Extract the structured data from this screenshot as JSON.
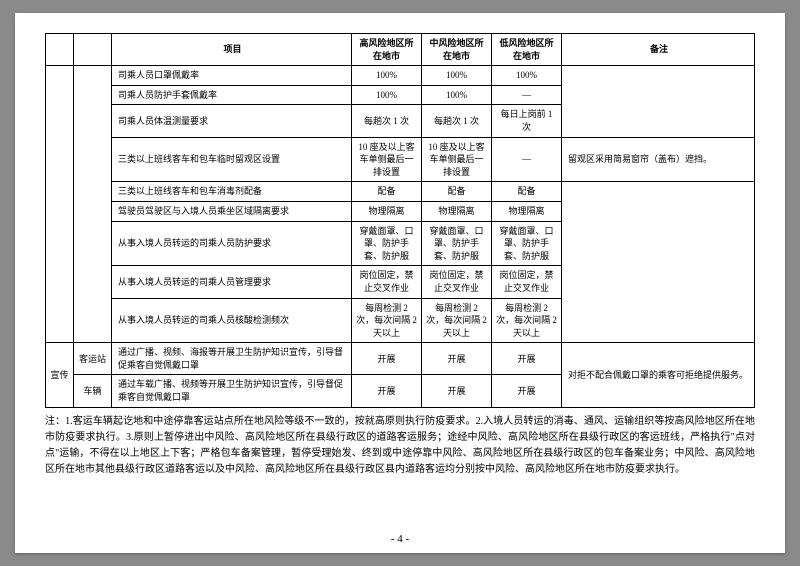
{
  "header": {
    "item": "项目",
    "high": "高风险地区所在地市",
    "mid": "中风险地区所在地市",
    "low": "低风险地区所在地市",
    "note": "备注"
  },
  "rows": [
    {
      "item": "司乘人员口罩佩戴率",
      "high": "100%",
      "mid": "100%",
      "low": "100%",
      "note": ""
    },
    {
      "item": "司乘人员防护手套佩戴率",
      "high": "100%",
      "mid": "100%",
      "low": "—",
      "note": ""
    },
    {
      "item": "司乘人员体温测量要求",
      "high": "每趟次 1 次",
      "mid": "每趟次 1 次",
      "low": "每日上岗前 1 次",
      "note": ""
    },
    {
      "item": "三类以上班线客车和包车临时留观区设置",
      "high": "10 座及以上客车单侧最后一排设置",
      "mid": "10 座及以上客车单侧最后一排设置",
      "low": "—",
      "note": "留观区采用简易窗帘（盖布）遮挡。"
    },
    {
      "item": "三类以上班线客车和包车消毒剂配备",
      "high": "配备",
      "mid": "配备",
      "low": "配备",
      "note": ""
    },
    {
      "item": "驾驶员驾驶区与入境人员乘坐区域隔离要求",
      "high": "物理隔离",
      "mid": "物理隔离",
      "low": "物理隔离",
      "note": ""
    },
    {
      "item": "从事入境人员转运的司乘人员防护要求",
      "high": "穿戴面罩、口罩、防护手套、防护服",
      "mid": "穿戴面罩、口罩、防护手套、防护服",
      "low": "穿戴面罩、口罩、防护手套、防护服",
      "note": ""
    },
    {
      "item": "从事入境人员转运的司乘人员管理要求",
      "high": "岗位固定，禁止交叉作业",
      "mid": "岗位固定，禁止交叉作业",
      "low": "岗位固定，禁止交叉作业",
      "note": ""
    },
    {
      "item": "从事入境人员转运的司乘人员核酸检测频次",
      "high": "每周检测 2 次，每次间隔 2 天以上",
      "mid": "每周检测 2 次，每次间隔 2 天以上",
      "low": "每周检测 2 次，每次间隔 2 天以上",
      "note": ""
    }
  ],
  "xuanchuan": {
    "group": "宣传",
    "sub1": "客运站",
    "sub2": "车辆",
    "item1": "通过广播、视频、海报等开展卫生防护知识宣传，引导督促乘客自觉佩戴口罩",
    "item2": "通过车载广播、视频等开展卫生防护知识宣传，引导督促乘客自觉佩戴口罩",
    "v1h": "开展",
    "v1m": "开展",
    "v1l": "开展",
    "v2h": "开展",
    "v2m": "开展",
    "v2l": "开展",
    "note": "对拒不配合佩戴口罩的乘客可拒绝提供服务。"
  },
  "notes": "注：1.客运车辆起讫地和中途停靠客运站点所在地风险等级不一致的，按就高原则执行防疫要求。2.入境人员转运的消毒、通风、运输组织等按高风险地区所在地市防疫要求执行。3.原则上暂停进出中风险、高风险地区所在县级行政区的道路客运服务；途经中风险、高风险地区所在县级行政区的客运班线，严格执行\"点对点\"运输，不得在以上地区上下客；严格包车备案管理，暂停受理始发、终到或中途停靠中风险、高风险地区所在县级行政区的包车备案业务；中风险、高风险地区所在地市其他县级行政区道路客运以及中风险、高风险地区所在县级行政区县内道路客运均分别按中风险、高风险地区所在地市防疫要求执行。",
  "pagenum": "- 4 -"
}
